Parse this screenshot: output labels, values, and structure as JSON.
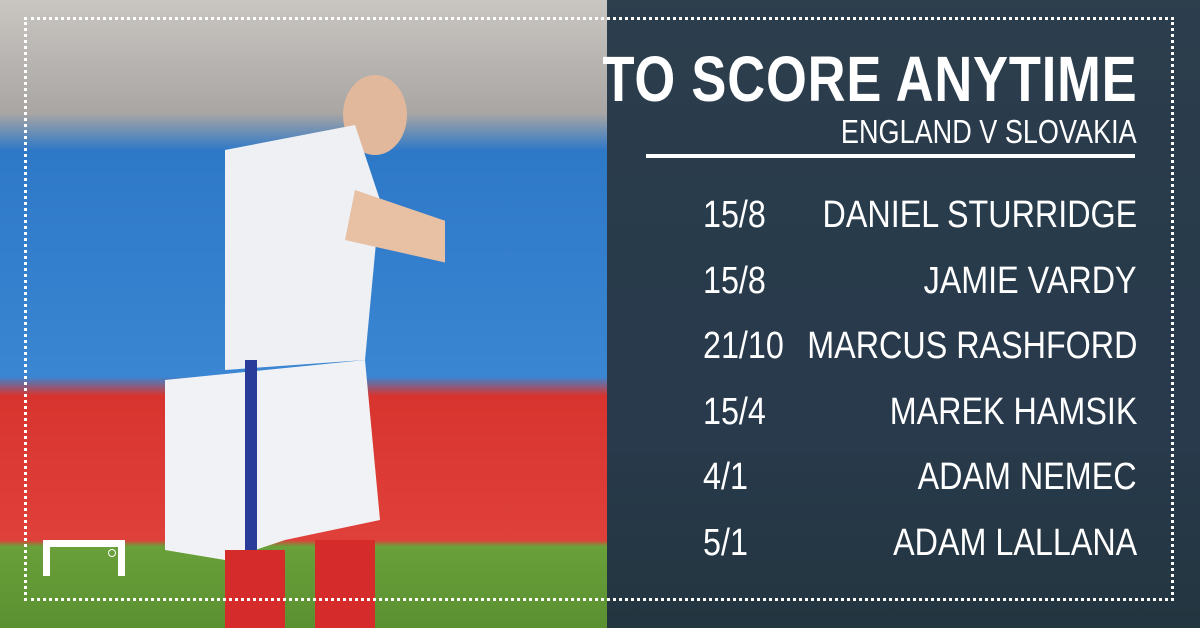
{
  "header": {
    "title": "TO SCORE ANYTIME",
    "subtitle": "ENGLAND V SLOVAKIA"
  },
  "odds": [
    {
      "odds": "15/8",
      "player": "DANIEL STURRIDGE"
    },
    {
      "odds": "15/8",
      "player": "JAMIE VARDY"
    },
    {
      "odds": "21/10",
      "player": "MARCUS RASHFORD"
    },
    {
      "odds": "15/4",
      "player": "MAREK HAMSIK"
    },
    {
      "odds": "4/1",
      "player": "ADAM NEMEC"
    },
    {
      "odds": "5/1",
      "player": "ADAM LALLANA"
    }
  ],
  "logo": {
    "name": "goal-logo-icon"
  },
  "colors": {
    "panel": "#34475a",
    "text": "#ffffff"
  }
}
